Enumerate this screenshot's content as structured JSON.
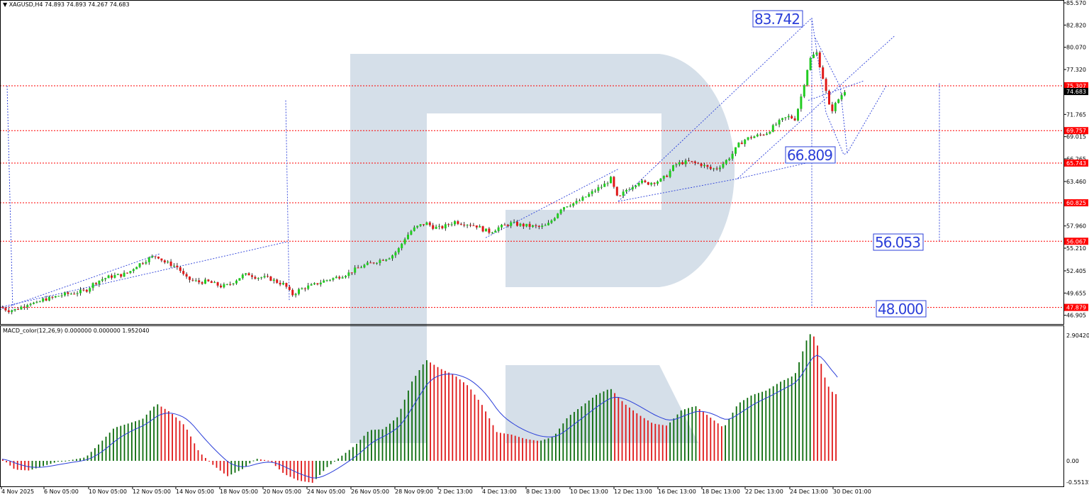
{
  "window": {
    "symbol_label": "XAGUSD,H4",
    "ohlc_label": "74.893 74.893 74.267 74.683"
  },
  "macd_panel": {
    "label": "MACD_color(12,26,9) 0.000000 0.000000 1.952040",
    "max_label": "2.904206",
    "zero_label": "0.00",
    "min_label": "-0.55135",
    "max": 2.904206,
    "min": -0.55135
  },
  "chart_data": {
    "type": "candlestick",
    "symbol": "XAGUSD",
    "timeframe": "H4",
    "price_axis": {
      "min": 46.0,
      "max": 85.57,
      "ticks": [
        "85.570",
        "82.820",
        "80.070",
        "77.320",
        "74.683",
        "71.765",
        "69.015",
        "66.265",
        "63.460",
        "60.825",
        "57.960",
        "55.210",
        "52.405",
        "49.655",
        "46.905"
      ]
    },
    "level_lines": [
      {
        "value": 75.307,
        "label": "75.307",
        "color": "#ff0000"
      },
      {
        "value": 69.757,
        "label": "69.757",
        "color": "#ff0000"
      },
      {
        "value": 65.743,
        "label": "65.743",
        "color": "#ff0000"
      },
      {
        "value": 60.825,
        "label": "60.825",
        "color": "#ff0000"
      },
      {
        "value": 56.067,
        "label": "56.067",
        "color": "#ff0000"
      },
      {
        "value": 47.879,
        "label": "47.879",
        "color": "#ff0000"
      }
    ],
    "current_price": {
      "value": 74.683,
      "label": "74.683"
    },
    "target_labels": [
      {
        "text": "83.742",
        "value": 83.742
      },
      {
        "text": "66.809",
        "value": 66.809
      },
      {
        "text": "56.053",
        "value": 56.053
      },
      {
        "text": "48.000",
        "value": 48.0
      }
    ],
    "x_labels": [
      "4 Nov 2025",
      "6 Nov 05:00",
      "10 Nov 05:00",
      "12 Nov 05:00",
      "14 Nov 05:00",
      "18 Nov 05:00",
      "20 Nov 05:00",
      "24 Nov 05:00",
      "26 Nov 05:00",
      "28 Nov 09:00",
      "2 Dec 13:00",
      "4 Dec 13:00",
      "8 Dec 13:00",
      "10 Dec 13:00",
      "12 Dec 13:00",
      "16 Dec 13:00",
      "18 Dec 13:00",
      "22 Dec 13:00",
      "24 Dec 13:00",
      "30 Dec 01:00"
    ],
    "close_path": [
      [
        0,
        47.9
      ],
      [
        10,
        47.5
      ],
      [
        20,
        47.6
      ],
      [
        30,
        48.0
      ],
      [
        40,
        48.5
      ],
      [
        50,
        48.3
      ],
      [
        60,
        48.9
      ],
      [
        70,
        49.0
      ],
      [
        80,
        49.3
      ],
      [
        90,
        49.5
      ],
      [
        100,
        49.6
      ],
      [
        110,
        49.8
      ],
      [
        120,
        50.0
      ],
      [
        130,
        50.8
      ],
      [
        140,
        51.3
      ],
      [
        150,
        51.6
      ],
      [
        160,
        51.8
      ],
      [
        170,
        51.9
      ],
      [
        180,
        52.2
      ],
      [
        190,
        53.0
      ],
      [
        200,
        53.5
      ],
      [
        210,
        54.0
      ],
      [
        220,
        54.3
      ],
      [
        230,
        53.5
      ],
      [
        240,
        53.2
      ],
      [
        250,
        52.8
      ],
      [
        260,
        51.5
      ],
      [
        270,
        51.2
      ],
      [
        280,
        51.0
      ],
      [
        290,
        51.1
      ],
      [
        300,
        50.8
      ],
      [
        310,
        50.5
      ],
      [
        320,
        50.6
      ],
      [
        330,
        51.2
      ],
      [
        340,
        51.8
      ],
      [
        350,
        52.0
      ],
      [
        360,
        51.6
      ],
      [
        370,
        51.6
      ],
      [
        380,
        51.4
      ],
      [
        390,
        51.0
      ],
      [
        400,
        50.7
      ],
      [
        410,
        49.4
      ],
      [
        420,
        50.0
      ],
      [
        430,
        50.4
      ],
      [
        440,
        50.6
      ],
      [
        450,
        51.0
      ],
      [
        460,
        51.3
      ],
      [
        470,
        51.5
      ],
      [
        480,
        51.8
      ],
      [
        490,
        52.1
      ],
      [
        500,
        52.6
      ],
      [
        510,
        53.0
      ],
      [
        520,
        53.3
      ],
      [
        530,
        53.6
      ],
      [
        540,
        53.9
      ],
      [
        550,
        54.2
      ],
      [
        560,
        55.0
      ],
      [
        570,
        56.5
      ],
      [
        580,
        57.5
      ],
      [
        590,
        58.0
      ],
      [
        600,
        58.3
      ],
      [
        610,
        57.8
      ],
      [
        620,
        57.7
      ],
      [
        630,
        58.1
      ],
      [
        640,
        58.5
      ],
      [
        650,
        58.3
      ],
      [
        660,
        58.2
      ],
      [
        670,
        58.0
      ],
      [
        680,
        57.5
      ],
      [
        690,
        57.2
      ],
      [
        700,
        57.7
      ],
      [
        710,
        58.0
      ],
      [
        720,
        58.3
      ],
      [
        730,
        58.1
      ],
      [
        740,
        58.0
      ],
      [
        750,
        57.9
      ],
      [
        760,
        57.8
      ],
      [
        770,
        58.0
      ],
      [
        780,
        59.0
      ],
      [
        790,
        60.2
      ],
      [
        800,
        60.6
      ],
      [
        810,
        60.8
      ],
      [
        820,
        61.3
      ],
      [
        830,
        61.9
      ],
      [
        840,
        62.5
      ],
      [
        850,
        63.0
      ],
      [
        860,
        63.8
      ],
      [
        870,
        61.2
      ],
      [
        880,
        62.3
      ],
      [
        890,
        62.9
      ],
      [
        900,
        63.5
      ],
      [
        910,
        63.2
      ],
      [
        920,
        63.4
      ],
      [
        930,
        63.6
      ],
      [
        940,
        64.3
      ],
      [
        950,
        65.5
      ],
      [
        960,
        65.8
      ],
      [
        970,
        65.9
      ],
      [
        980,
        65.7
      ],
      [
        990,
        65.5
      ],
      [
        1000,
        65.0
      ],
      [
        1010,
        65.1
      ],
      [
        1020,
        65.8
      ],
      [
        1030,
        66.7
      ],
      [
        1040,
        68.0
      ],
      [
        1050,
        68.7
      ],
      [
        1060,
        69.0
      ],
      [
        1070,
        69.2
      ],
      [
        1080,
        69.5
      ],
      [
        1090,
        70.3
      ],
      [
        1100,
        71.0
      ],
      [
        1110,
        71.5
      ],
      [
        1120,
        71.2
      ],
      [
        1130,
        74.5
      ],
      [
        1140,
        78.5
      ],
      [
        1150,
        79.5
      ],
      [
        1160,
        76.0
      ],
      [
        1170,
        72.0
      ],
      [
        1180,
        73.5
      ],
      [
        1190,
        74.7
      ]
    ],
    "macd_path": [
      [
        0,
        0.08
      ],
      [
        20,
        -0.2
      ],
      [
        40,
        -0.22
      ],
      [
        60,
        -0.12
      ],
      [
        80,
        -0.02
      ],
      [
        100,
        0.02
      ],
      [
        120,
        0.08
      ],
      [
        140,
        0.4
      ],
      [
        160,
        0.75
      ],
      [
        180,
        0.85
      ],
      [
        200,
        0.95
      ],
      [
        220,
        1.3
      ],
      [
        240,
        1.1
      ],
      [
        260,
        0.8
      ],
      [
        280,
        0.2
      ],
      [
        300,
        -0.1
      ],
      [
        320,
        -0.35
      ],
      [
        340,
        -0.2
      ],
      [
        360,
        0.05
      ],
      [
        380,
        0.0
      ],
      [
        400,
        -0.3
      ],
      [
        420,
        -0.45
      ],
      [
        440,
        -0.5
      ],
      [
        460,
        -0.15
      ],
      [
        480,
        0.1
      ],
      [
        500,
        0.35
      ],
      [
        520,
        0.7
      ],
      [
        540,
        0.72
      ],
      [
        560,
        1.0
      ],
      [
        580,
        1.8
      ],
      [
        600,
        2.3
      ],
      [
        620,
        2.1
      ],
      [
        640,
        1.95
      ],
      [
        660,
        1.7
      ],
      [
        680,
        1.25
      ],
      [
        700,
        0.65
      ],
      [
        720,
        0.6
      ],
      [
        740,
        0.5
      ],
      [
        760,
        0.45
      ],
      [
        780,
        0.55
      ],
      [
        800,
        1.0
      ],
      [
        820,
        1.25
      ],
      [
        840,
        1.5
      ],
      [
        860,
        1.65
      ],
      [
        880,
        1.3
      ],
      [
        900,
        1.05
      ],
      [
        920,
        0.85
      ],
      [
        940,
        0.8
      ],
      [
        960,
        1.15
      ],
      [
        980,
        1.25
      ],
      [
        1000,
        1.0
      ],
      [
        1020,
        0.75
      ],
      [
        1040,
        1.3
      ],
      [
        1060,
        1.5
      ],
      [
        1080,
        1.6
      ],
      [
        1100,
        1.8
      ],
      [
        1120,
        1.95
      ],
      [
        1140,
        2.9
      ],
      [
        1150,
        2.8
      ],
      [
        1160,
        2.0
      ],
      [
        1170,
        1.6
      ],
      [
        1180,
        1.5
      ]
    ]
  }
}
